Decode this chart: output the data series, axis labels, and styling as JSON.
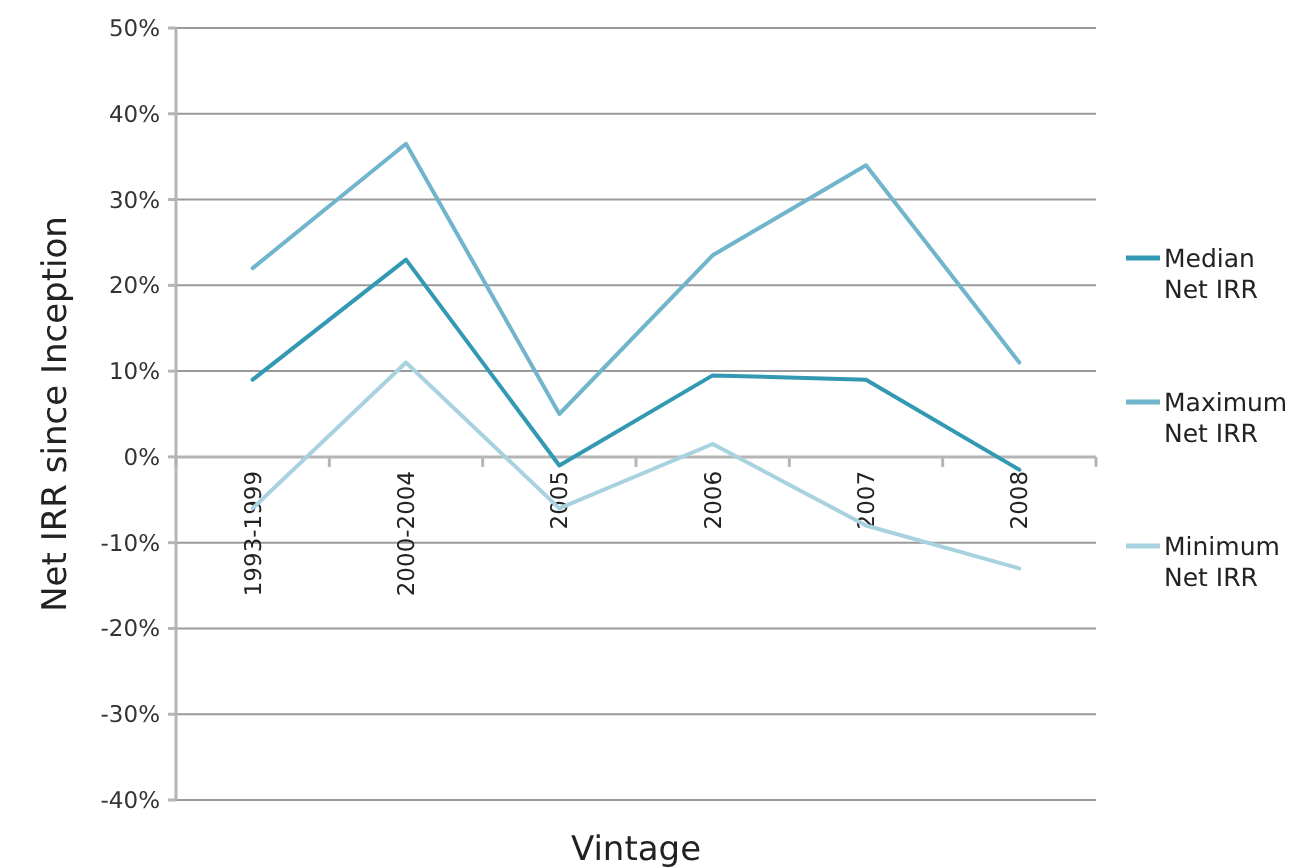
{
  "chart_data": {
    "type": "line",
    "xlabel": "Vintage",
    "ylabel": "Net IRR since Inception",
    "categories": [
      "1993-1999",
      "2000-2004",
      "2005",
      "2006",
      "2007",
      "2008"
    ],
    "series": [
      {
        "name": "Median Net IRR",
        "color": "#3399b3",
        "values": [
          9,
          23,
          -1,
          9.5,
          9,
          -1.5
        ]
      },
      {
        "name": "Maximum Net IRR",
        "color": "#71b5cc",
        "values": [
          22,
          36.5,
          5,
          23.5,
          34,
          11
        ]
      },
      {
        "name": "Minimum Net IRR",
        "color": "#a8d2df",
        "values": [
          -6,
          11,
          -6,
          1.5,
          -8,
          -13
        ]
      }
    ],
    "ylim": [
      -40,
      50
    ],
    "yticks": [
      {
        "value": -40,
        "label": "-40%"
      },
      {
        "value": -30,
        "label": "-30%"
      },
      {
        "value": -20,
        "label": "-20%"
      },
      {
        "value": -10,
        "label": "-10%"
      },
      {
        "value": 0,
        "label": "0%"
      },
      {
        "value": 10,
        "label": "10%"
      },
      {
        "value": 20,
        "label": "20%"
      },
      {
        "value": 30,
        "label": "30%"
      },
      {
        "value": 40,
        "label": "40%"
      },
      {
        "value": 50,
        "label": "50%"
      }
    ],
    "grid": "y",
    "legend": "right",
    "marker": "none",
    "line_style": "solid"
  }
}
